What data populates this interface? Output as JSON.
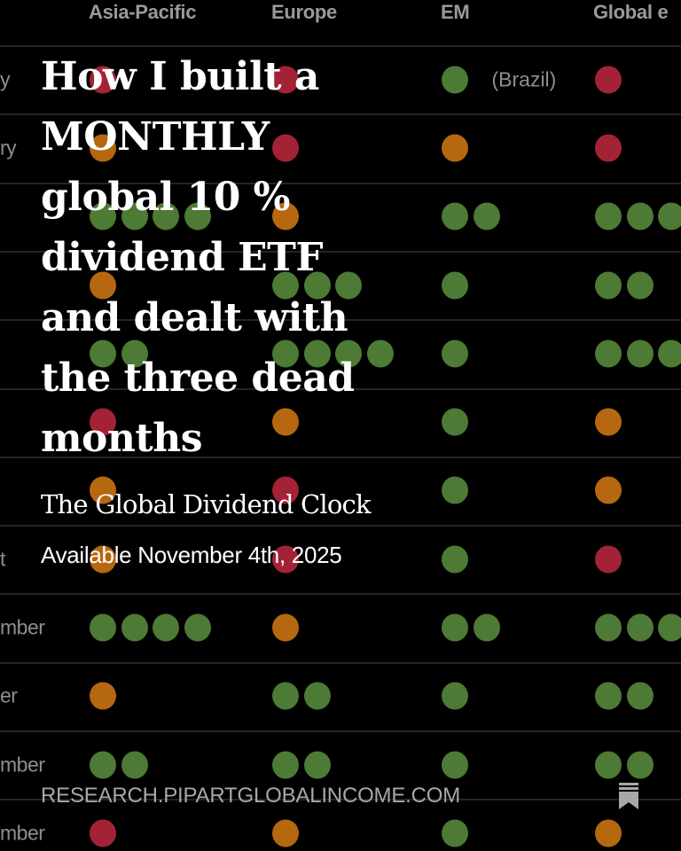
{
  "colors": {
    "red": "#a42236",
    "orange": "#b5680f",
    "green": "#4d7a34",
    "background": "#000000"
  },
  "table": {
    "columns": [
      "Asia-Pacific",
      "Europe",
      "EM",
      "Global e"
    ],
    "rows": [
      {
        "label": "y",
        "cells": [
          {
            "color": "red",
            "count": 1
          },
          {
            "color": "red",
            "count": 1
          },
          {
            "color": "green",
            "count": 1,
            "note": "(Brazil)"
          },
          {
            "color": "red",
            "count": 1
          }
        ]
      },
      {
        "label": "ry",
        "cells": [
          {
            "color": "orange",
            "count": 1
          },
          {
            "color": "red",
            "count": 1
          },
          {
            "color": "orange",
            "count": 1
          },
          {
            "color": "red",
            "count": 1
          }
        ]
      },
      {
        "label": "",
        "cells": [
          {
            "color": "green",
            "count": 4
          },
          {
            "color": "orange",
            "count": 1
          },
          {
            "color": "green",
            "count": 2
          },
          {
            "color": "green",
            "count": 3
          }
        ]
      },
      {
        "label": "",
        "cells": [
          {
            "color": "orange",
            "count": 1
          },
          {
            "color": "green",
            "count": 3
          },
          {
            "color": "green",
            "count": 1
          },
          {
            "color": "green",
            "count": 2
          }
        ]
      },
      {
        "label": "",
        "cells": [
          {
            "color": "green",
            "count": 2
          },
          {
            "color": "green",
            "count": 4
          },
          {
            "color": "green",
            "count": 1
          },
          {
            "color": "green",
            "count": 3
          }
        ]
      },
      {
        "label": "",
        "cells": [
          {
            "color": "red",
            "count": 1
          },
          {
            "color": "orange",
            "count": 1
          },
          {
            "color": "green",
            "count": 1
          },
          {
            "color": "orange",
            "count": 1
          }
        ]
      },
      {
        "label": "",
        "cells": [
          {
            "color": "orange",
            "count": 1
          },
          {
            "color": "red",
            "count": 1
          },
          {
            "color": "green",
            "count": 1
          },
          {
            "color": "orange",
            "count": 1
          }
        ]
      },
      {
        "label": "t",
        "cells": [
          {
            "color": "orange",
            "count": 1
          },
          {
            "color": "red",
            "count": 1
          },
          {
            "color": "green",
            "count": 1
          },
          {
            "color": "red",
            "count": 1
          }
        ]
      },
      {
        "label": "mber",
        "cells": [
          {
            "color": "green",
            "count": 4
          },
          {
            "color": "orange",
            "count": 1
          },
          {
            "color": "green",
            "count": 2
          },
          {
            "color": "green",
            "count": 3
          }
        ]
      },
      {
        "label": "er",
        "cells": [
          {
            "color": "orange",
            "count": 1
          },
          {
            "color": "green",
            "count": 2
          },
          {
            "color": "green",
            "count": 1
          },
          {
            "color": "green",
            "count": 2
          }
        ]
      },
      {
        "label": "mber",
        "cells": [
          {
            "color": "green",
            "count": 2
          },
          {
            "color": "green",
            "count": 2
          },
          {
            "color": "green",
            "count": 1
          },
          {
            "color": "green",
            "count": 2
          }
        ]
      },
      {
        "label": "mber",
        "cells": [
          {
            "color": "red",
            "count": 1
          },
          {
            "color": "orange",
            "count": 1
          },
          {
            "color": "green",
            "count": 1
          },
          {
            "color": "orange",
            "count": 1
          }
        ]
      }
    ]
  },
  "cover": {
    "title_lines": [
      "How I built a",
      "MONTHLY",
      "global 10 %",
      "dividend ETF",
      "and dealt with",
      "the three dead",
      "months"
    ],
    "subtitle": "The Global Dividend Clock",
    "availability": "Available November 4th, 2025",
    "footer_url": "RESEARCH.PIPARTGLOBALINCOME.COM",
    "footer_icon": "bookmark-icon"
  }
}
